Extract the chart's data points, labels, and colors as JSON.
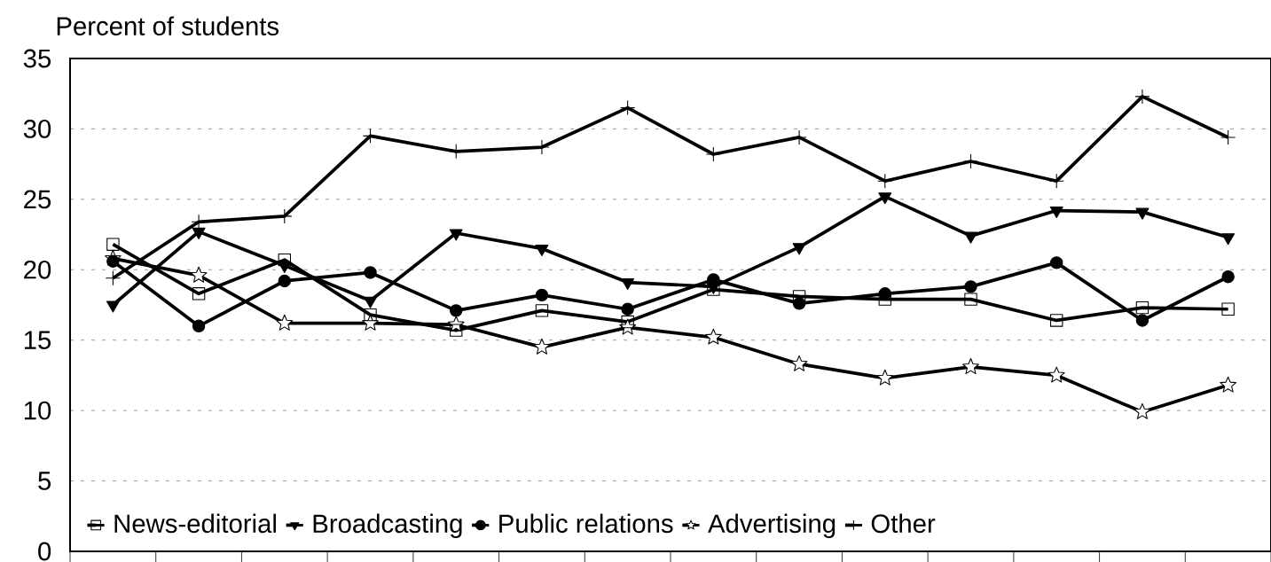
{
  "chart_data": {
    "type": "line",
    "ylabel": "Percent of students",
    "categories": [
      null,
      null,
      null,
      null,
      null,
      null,
      null,
      null,
      null,
      null,
      null,
      null,
      null,
      null
    ],
    "series": [
      {
        "name": "News-editorial",
        "color": "#000000",
        "marker": "square",
        "values": [
          21.8,
          18.3,
          20.7,
          16.8,
          15.7,
          17.1,
          16.3,
          18.6,
          18.1,
          17.9,
          17.9,
          16.4,
          17.3,
          17.2
        ]
      },
      {
        "name": "Broadcasting",
        "color": "#000000",
        "marker": "triangle",
        "values": [
          17.5,
          22.7,
          20.3,
          17.8,
          22.6,
          21.5,
          19.1,
          18.8,
          21.6,
          25.2,
          22.4,
          24.2,
          24.1,
          22.3
        ]
      },
      {
        "name": "Public relations",
        "color": "#000000",
        "marker": "circle",
        "values": [
          20.6,
          16.0,
          19.2,
          19.8,
          17.1,
          18.2,
          17.2,
          19.3,
          17.6,
          18.3,
          18.8,
          20.5,
          16.4,
          19.5
        ]
      },
      {
        "name": "Advertising",
        "color": "#000000",
        "marker": "star",
        "values": [
          20.8,
          19.6,
          16.2,
          16.2,
          16.1,
          14.5,
          15.9,
          15.2,
          13.3,
          12.3,
          13.1,
          12.5,
          9.9,
          11.8
        ]
      },
      {
        "name": "Other",
        "color": "#000000",
        "marker": "cross",
        "values": [
          19.4,
          23.4,
          23.8,
          29.5,
          28.4,
          28.7,
          31.5,
          28.2,
          29.4,
          26.3,
          27.7,
          26.3,
          32.3,
          29.4
        ]
      }
    ],
    "ylim": [
      0,
      35
    ],
    "yticks": [
      0,
      5,
      10,
      15,
      20,
      25,
      30,
      35
    ],
    "grid": "y",
    "legend": "bottom left",
    "line_style": "solid"
  }
}
